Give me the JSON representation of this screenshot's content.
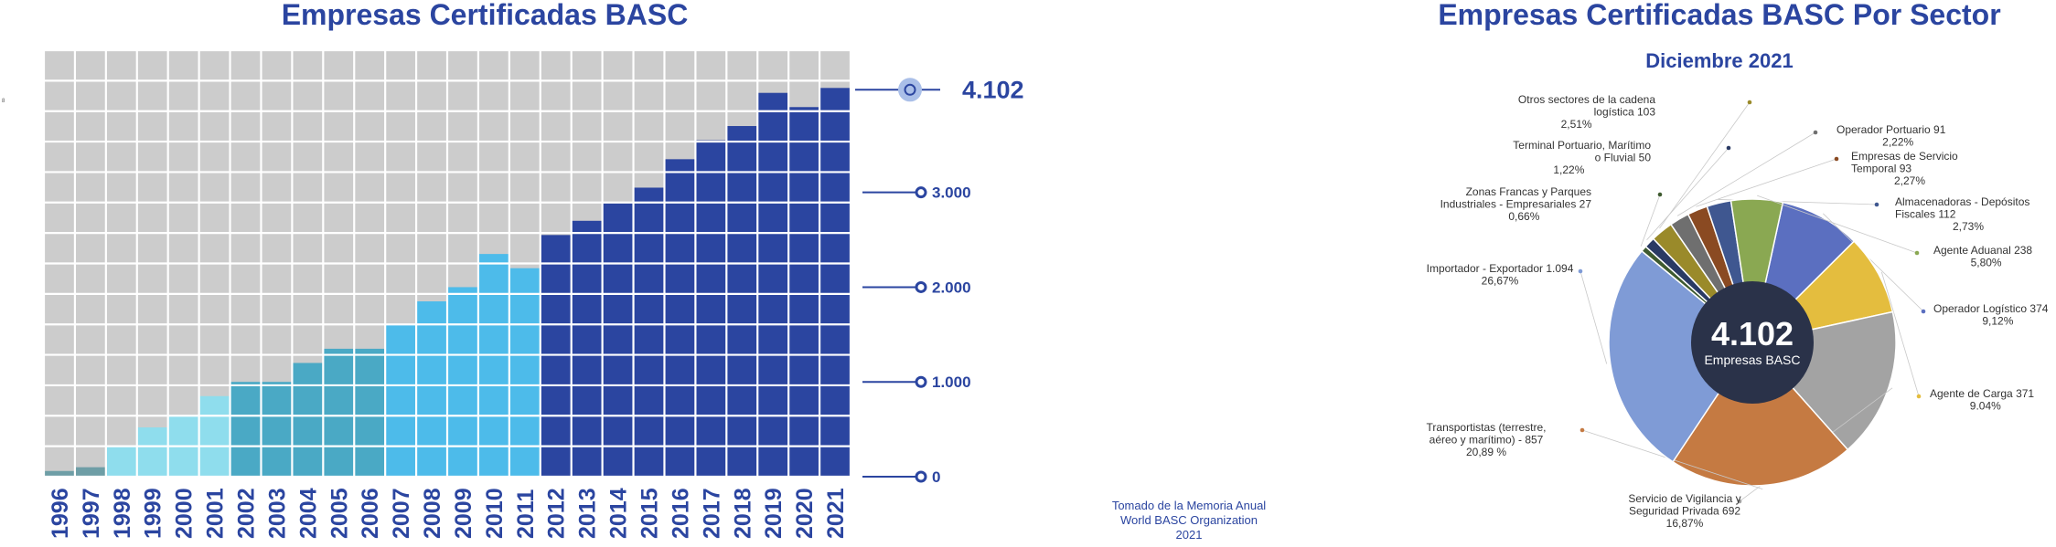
{
  "chart_data": [
    {
      "type": "bar",
      "title": "Empresas Certificadas BASC",
      "xlabel": "",
      "ylabel": "",
      "ylim": [
        0,
        4500
      ],
      "categories": [
        "1996",
        "1997",
        "1998",
        "1999",
        "2000",
        "2001",
        "2002",
        "2003",
        "2004",
        "2005",
        "2006",
        "2007",
        "2008",
        "2009",
        "2010",
        "2011",
        "2012",
        "2013",
        "2014",
        "2015",
        "2016",
        "2017",
        "2018",
        "2019",
        "2020",
        "2021"
      ],
      "values": [
        60,
        100,
        330,
        520,
        650,
        850,
        1000,
        1000,
        1200,
        1350,
        1350,
        1600,
        1850,
        2000,
        2350,
        2200,
        2550,
        2700,
        2900,
        3050,
        3350,
        3550,
        3700,
        4050,
        3900,
        4102
      ],
      "colors": [
        "#6e9ea6",
        "#6e9ea6",
        "#8fdded",
        "#8fdded",
        "#8fdded",
        "#8fdded",
        "#4aa9c5",
        "#4aa9c5",
        "#4aa9c5",
        "#4aa9c5",
        "#4aa9c5",
        "#4dbbea",
        "#4dbbea",
        "#4dbbea",
        "#4dbbea",
        "#4dbbea",
        "#2b45a0",
        "#2b45a0",
        "#2b45a0",
        "#2b45a0",
        "#2b45a0",
        "#2b45a0",
        "#2b45a0",
        "#2b45a0",
        "#2b45a0",
        "#2b45a0"
      ],
      "reference_lines": [
        {
          "value": 4102,
          "label": "4.102"
        },
        {
          "value": 3000,
          "label": "3.000"
        },
        {
          "value": 2000,
          "label": "2.000"
        },
        {
          "value": 1000,
          "label": "1.000"
        },
        {
          "value": 0,
          "label": "0"
        }
      ]
    },
    {
      "type": "pie",
      "title": "Empresas Certificadas BASC Por Sector",
      "subtitle": "Diciembre 2021",
      "total_value": "4.102",
      "total_label": "Empresas BASC",
      "slices": [
        {
          "name": "Operador Logístico",
          "value": 374,
          "pct": "9,12%",
          "color": "#5b6fc0",
          "label": [
            "Operador Logístico 374",
            "9,12%"
          ]
        },
        {
          "name": "Agente de Carga",
          "value": 371,
          "pct": "9.04%",
          "color": "#e4bd3e",
          "label": [
            "Agente de Carga 371",
            "9.04%"
          ]
        },
        {
          "name": "Servicio de Vigilancia y Seguridad Privada",
          "value": 692,
          "pct": "16,87%",
          "color": "#a3a3a3",
          "label": [
            "Servicio de Vigilancia y",
            "Seguridad Privada 692",
            "16,87%"
          ]
        },
        {
          "name": "Transportistas (terrestre, aéreo y marítimo)",
          "value": 857,
          "pct": "20,89 %",
          "color": "#c57a42",
          "label": [
            "Transportistas (terrestre,",
            "aéreo y marítimo) - 857",
            "20,89 %"
          ]
        },
        {
          "name": "Importador - Exportador",
          "value": 1094,
          "pct": "26,67%",
          "color": "#7f9bd6",
          "label": [
            "Importador - Exportador 1.094",
            "26,67%"
          ]
        },
        {
          "name": "Zonas Francas y Parques Industriales - Empresariales",
          "value": 27,
          "pct": "0,66%",
          "color": "#3e5a2f",
          "label": [
            "Zonas Francas y Parques",
            "Industriales - Empresariales 27",
            "0,66%"
          ]
        },
        {
          "name": "Terminal Portuario, Marítimo o Fluvial",
          "value": 50,
          "pct": "1,22%",
          "color": "#2a3a64",
          "label": [
            "Terminal Portuario, Marítimo",
            "o Fluvial 50",
            "1,22%"
          ]
        },
        {
          "name": "Otros sectores de la cadena logística",
          "value": 103,
          "pct": "2,51%",
          "color": "#9a8a2a",
          "label": [
            "Otros sectores de la cadena",
            "logística 103",
            "2,51%"
          ]
        },
        {
          "name": "Operador Portuario",
          "value": 91,
          "pct": "2,22%",
          "color": "#6f6f6f",
          "label": [
            "Operador Portuario 91",
            "2,22%"
          ]
        },
        {
          "name": "Empresas de Servicio Temporal",
          "value": 93,
          "pct": "2,27%",
          "color": "#8a4a22",
          "label": [
            "Empresas de Servicio",
            "Temporal 93",
            "2,27%"
          ]
        },
        {
          "name": "Almacenadoras - Depósitos Fiscales",
          "value": 112,
          "pct": "2,73%",
          "color": "#3f5790",
          "label": [
            "Almacenadoras - Depósitos",
            "Fiscales 112",
            "2,73%"
          ]
        },
        {
          "name": "Agente Aduanal",
          "value": 238,
          "pct": "5,80%",
          "color": "#8aa852",
          "label": [
            "Agente Aduanal 238",
            "5,80%"
          ]
        }
      ]
    }
  ],
  "source_note": [
    "Tomado de la Memoria Anual",
    "World BASC Organization",
    "2021"
  ],
  "stray_mark": "8"
}
